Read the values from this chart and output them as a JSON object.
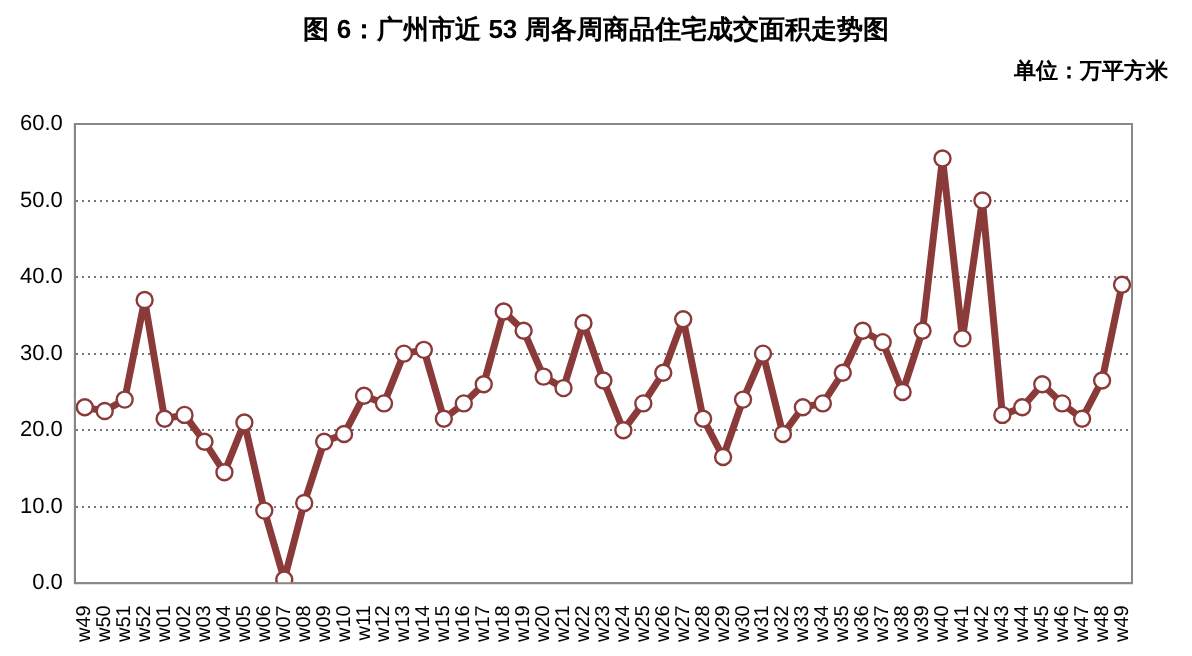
{
  "chart_data": {
    "type": "line",
    "title": "图 6：广州市近 53 周各周商品住宅成交面积走势图",
    "annotations": [
      "单位：万平方米"
    ],
    "categories": [
      "w49",
      "w50",
      "w51",
      "w52",
      "w01",
      "w02",
      "w03",
      "w04",
      "w05",
      "w06",
      "w07",
      "w08",
      "w09",
      "w10",
      "w11",
      "w12",
      "w13",
      "w14",
      "w15",
      "w16",
      "w17",
      "w18",
      "w19",
      "w20",
      "w21",
      "w22",
      "w23",
      "w24",
      "w25",
      "w26",
      "w27",
      "w28",
      "w29",
      "w30",
      "w31",
      "w32",
      "w33",
      "w34",
      "w35",
      "w36",
      "w37",
      "w38",
      "w39",
      "w40",
      "w41",
      "w42",
      "w43",
      "w44",
      "w45",
      "w46",
      "w47",
      "w48",
      "w49"
    ],
    "series": [
      {
        "color": "#8b3a3a",
        "values": [
          23,
          22.5,
          24,
          37,
          21.5,
          22,
          18.5,
          14.5,
          21,
          9.5,
          0.5,
          10.5,
          18.5,
          19.5,
          24.5,
          23.5,
          30,
          30.5,
          21.5,
          23.5,
          26,
          35.5,
          33,
          27,
          25.5,
          34,
          26.5,
          20,
          23.5,
          27.5,
          34.5,
          21.5,
          16.5,
          24,
          30,
          19.5,
          23,
          23.5,
          27.5,
          33,
          31.5,
          25,
          33,
          55.5,
          32,
          50,
          22,
          23,
          26,
          23.5,
          21.5,
          26.5,
          39
        ]
      }
    ],
    "ylim": [
      0,
      60
    ],
    "yticks": [
      {
        "value": 0,
        "label": "0.0"
      },
      {
        "value": 10,
        "label": "10.0"
      },
      {
        "value": 20,
        "label": "20.0"
      },
      {
        "value": 30,
        "label": "30.0"
      },
      {
        "value": 40,
        "label": "40.0"
      },
      {
        "value": 50,
        "label": "50.0"
      },
      {
        "value": 60,
        "label": "60.0"
      }
    ],
    "grid": "y",
    "legend": false,
    "marker": "circle",
    "line_style": "solid"
  }
}
